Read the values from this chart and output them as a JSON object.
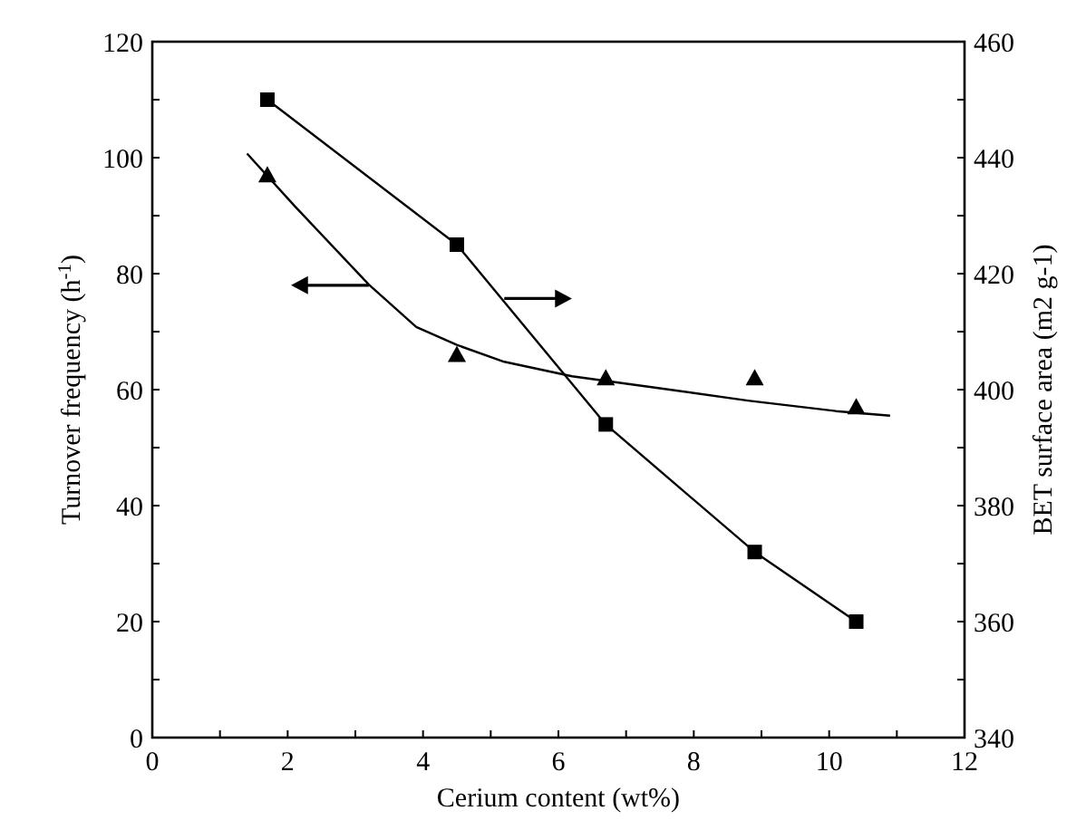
{
  "chart_data": {
    "type": "line",
    "xlabel": "Cerium content (wt%)",
    "ylabel": "Turnover frequency (h$^{-1}$)",
    "y2label": "BET surface area (m2 g-1)",
    "xlim": [
      0,
      12
    ],
    "xticks": [
      0,
      {
        "value": 1,
        "label": null
      },
      2,
      {
        "value": 3,
        "label": null
      },
      4,
      {
        "value": 5,
        "label": null
      },
      6,
      {
        "value": 7,
        "label": null
      },
      8,
      {
        "value": 9,
        "label": null
      },
      10,
      {
        "value": 11,
        "label": null
      },
      12
    ],
    "ylim": [
      0,
      120
    ],
    "yticks": [
      0,
      {
        "value": 10,
        "label": null
      },
      20,
      {
        "value": 30,
        "label": null
      },
      40,
      {
        "value": 50,
        "label": null
      },
      60,
      {
        "value": 70,
        "label": null
      },
      80,
      {
        "value": 90,
        "label": null
      },
      100,
      {
        "value": 110,
        "label": null
      },
      120
    ],
    "y2lim": [
      340,
      460
    ],
    "y2ticks": [
      340,
      {
        "value": 350,
        "label": null
      },
      360,
      {
        "value": 370,
        "label": null
      },
      380,
      {
        "value": 390,
        "label": null
      },
      400,
      {
        "value": 410,
        "label": null
      },
      420,
      {
        "value": 430,
        "label": null
      },
      440,
      {
        "value": 450,
        "label": null
      },
      460
    ],
    "grid": false,
    "series": [
      {
        "type": "scatter",
        "marker": "triangle",
        "color": "#000000",
        "x": [
          1.7,
          4.5,
          6.7,
          8.9,
          10.4
        ],
        "values": [
          97,
          66,
          62,
          62,
          57
        ]
      },
      {
        "marker": "none",
        "color": "#000000",
        "x": [
          1.4,
          2.1,
          3.2,
          3.9,
          4.5,
          5.2,
          6.2,
          7.4,
          8.8,
          10.1,
          10.9
        ],
        "values": [
          100.7,
          91.7,
          78.1,
          70.8,
          67.7,
          64.8,
          62.3,
          60.4,
          58.1,
          56.3,
          55.5
        ]
      },
      {
        "type": "line",
        "marker": "square",
        "axis": "y2",
        "color": "#000000",
        "x": [
          1.7,
          4.5,
          6.7,
          8.9,
          10.4
        ],
        "values": [
          450,
          425,
          394,
          372,
          360
        ]
      }
    ]
  }
}
